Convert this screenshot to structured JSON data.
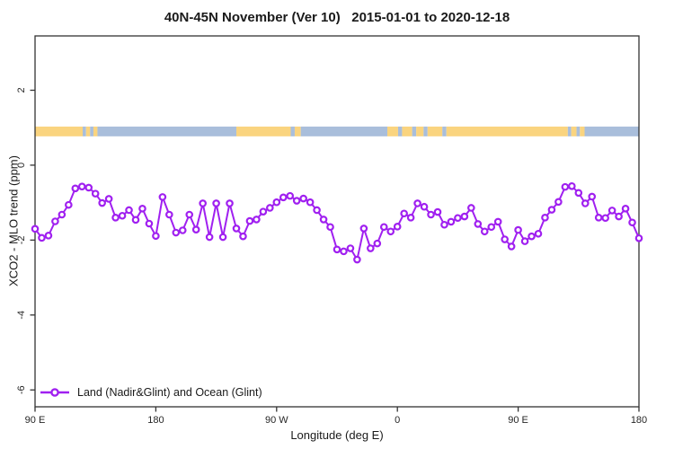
{
  "title": "40N-45N November (Ver 10)   2015-01-01 to 2020-12-18",
  "chart_data": {
    "type": "line",
    "title": "40N-45N November (Ver 10)   2015-01-01 to 2020-12-18",
    "xlabel": "Longitude (deg E)",
    "ylabel": "XCO2 - MLO trend (ppm)",
    "axis_color": "#333333",
    "x_start_deg": 90,
    "x_step_deg": 5,
    "x_span_deg": 450,
    "x_ticks": [
      {
        "lon": 90,
        "label": "90 E"
      },
      {
        "lon": 180,
        "label": "180"
      },
      {
        "lon": 270,
        "label": "90 W"
      },
      {
        "lon": 360,
        "label": "0"
      },
      {
        "lon": 450,
        "label": "90 E"
      },
      {
        "lon": 540,
        "label": "180"
      }
    ],
    "y_ticks": [
      {
        "v": 2,
        "label": "2"
      },
      {
        "v": 0,
        "label": "0"
      },
      {
        "v": -2,
        "label": "-2"
      },
      {
        "v": -4,
        "label": "-4"
      },
      {
        "v": -6,
        "label": "-6"
      }
    ],
    "ylim": [
      -6.45,
      3.45
    ],
    "grid": false,
    "legend": {
      "position": "bottom-left",
      "label": "Land (Nadir&Glint) and Ocean (Glint)"
    },
    "series": [
      {
        "name": "Land (Nadir&Glint) and Ocean (Glint)",
        "color": "#A020F0",
        "marker": "open-circle",
        "values": [
          -1.7,
          -1.94,
          -1.88,
          -1.5,
          -1.32,
          -1.06,
          -0.62,
          -0.57,
          -0.6,
          -0.76,
          -1.01,
          -0.9,
          -1.4,
          -1.35,
          -1.2,
          -1.46,
          -1.16,
          -1.56,
          -1.89,
          -0.85,
          -1.32,
          -1.8,
          -1.74,
          -1.32,
          -1.72,
          -1.02,
          -1.92,
          -1.02,
          -1.92,
          -1.02,
          -1.69,
          -1.9,
          -1.49,
          -1.45,
          -1.24,
          -1.14,
          -0.99,
          -0.86,
          -0.82,
          -0.95,
          -0.89,
          -0.99,
          -1.2,
          -1.45,
          -1.65,
          -2.25,
          -2.3,
          -2.22,
          -2.52,
          -1.69,
          -2.22,
          -2.09,
          -1.65,
          -1.77,
          -1.64,
          -1.29,
          -1.4,
          -1.02,
          -1.11,
          -1.32,
          -1.25,
          -1.59,
          -1.51,
          -1.41,
          -1.37,
          -1.14,
          -1.57,
          -1.77,
          -1.65,
          -1.51,
          -1.98,
          -2.17,
          -1.73,
          -2.03,
          -1.9,
          -1.83,
          -1.4,
          -1.19,
          -0.98,
          -0.58,
          -0.56,
          -0.74,
          -1.02,
          -0.84,
          -1.4,
          -1.41,
          -1.21,
          -1.37,
          -1.16,
          -1.53,
          -1.95
        ]
      }
    ],
    "surface_band": {
      "description": "land/ocean strip for 40N-45N latitude band",
      "y_top_value": 1.03,
      "y_bottom_value": 0.77,
      "land_color": "#FAD47F",
      "sea_color": "#A9BEDB",
      "segments": [
        {
          "from": 90,
          "to": 125.5,
          "type": "land"
        },
        {
          "from": 125.5,
          "to": 128,
          "type": "sea"
        },
        {
          "from": 128,
          "to": 131,
          "type": "land"
        },
        {
          "from": 131,
          "to": 133.5,
          "type": "sea"
        },
        {
          "from": 133.5,
          "to": 136.5,
          "type": "land"
        },
        {
          "from": 136.5,
          "to": 240,
          "type": "sea"
        },
        {
          "from": 240,
          "to": 280.5,
          "type": "land"
        },
        {
          "from": 280.5,
          "to": 283.5,
          "type": "sea"
        },
        {
          "from": 283.5,
          "to": 288,
          "type": "land"
        },
        {
          "from": 288,
          "to": 352.5,
          "type": "sea"
        },
        {
          "from": 352.5,
          "to": 360.5,
          "type": "land"
        },
        {
          "from": 360.5,
          "to": 363.5,
          "type": "sea"
        },
        {
          "from": 363.5,
          "to": 371,
          "type": "land"
        },
        {
          "from": 371,
          "to": 374,
          "type": "sea"
        },
        {
          "from": 374,
          "to": 379.5,
          "type": "land"
        },
        {
          "from": 379.5,
          "to": 382.5,
          "type": "sea"
        },
        {
          "from": 382.5,
          "to": 393.5,
          "type": "land"
        },
        {
          "from": 393.5,
          "to": 396.5,
          "type": "sea"
        },
        {
          "from": 396.5,
          "to": 487,
          "type": "land"
        },
        {
          "from": 487,
          "to": 489.5,
          "type": "sea"
        },
        {
          "from": 489.5,
          "to": 493.5,
          "type": "land"
        },
        {
          "from": 493.5,
          "to": 496,
          "type": "sea"
        },
        {
          "from": 496,
          "to": 499.5,
          "type": "land"
        },
        {
          "from": 499.5,
          "to": 540,
          "type": "sea"
        }
      ]
    }
  }
}
